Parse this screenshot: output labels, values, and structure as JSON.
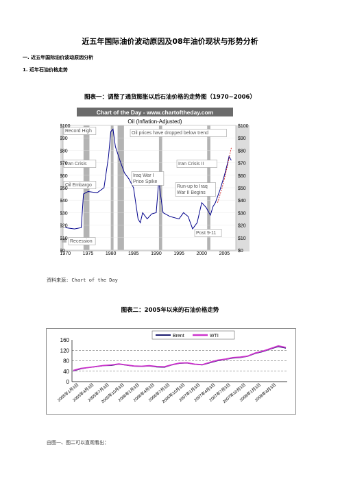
{
  "document": {
    "title": "近五年国际油价波动原因及08年油价现状与形势分析",
    "section_heading": "一.  近五年国际油价波动原因分析",
    "subsection_heading": "1.   近年石油价格走势",
    "figure1_caption": "图表一：调整了通货膨胀以后石油价格的走势图（1970~2006）",
    "source_note": "资料来源: Chart of the Day",
    "figure2_caption": "图表二：2005年以来的石油价格走势",
    "body_text": "由图一、图二可以直观看出："
  },
  "chart_data": [
    {
      "type": "line",
      "banner": "Chart of the Day - www.chartoftheday.com",
      "title": "Oil (Inflation-Adjusted)",
      "x_ticks": [
        "1970",
        "1975",
        "1980",
        "1985",
        "1990",
        "1995",
        "2000",
        "2005"
      ],
      "y_ticks_left": [
        "$100",
        "$90",
        "$80",
        "$70",
        "$60",
        "$50",
        "$40",
        "$30",
        "$20",
        "$10",
        "$0"
      ],
      "y_ticks_right": [
        "$100",
        "$90",
        "$80",
        "$70",
        "$60",
        "$50",
        "$40",
        "$30",
        "$20",
        "$10",
        "$0"
      ],
      "xlim": [
        1969.5,
        2007.5
      ],
      "ylim": [
        0,
        100
      ],
      "recessions": [
        [
          1974,
          1975.3
        ],
        [
          1980,
          1980.6
        ],
        [
          1981.5,
          1982.9
        ],
        [
          1990.6,
          1991.3
        ],
        [
          2001.2,
          2001.9
        ]
      ],
      "annotations": [
        {
          "text": "Record High"
        },
        {
          "text": "Iran Crisis"
        },
        {
          "text": "Oil Embargo"
        },
        {
          "text": "Recession"
        },
        {
          "text": "Oil prices have dropped below trend"
        },
        {
          "text": "Iraq War I Price Spike"
        },
        {
          "text": "Iran Crisis II"
        },
        {
          "text": "Run-up to Iraq War II Begins"
        },
        {
          "text": "Post 9-11"
        }
      ],
      "series": [
        {
          "color": "#00008b",
          "x": [
            1970,
            1972,
            1973.5,
            1974,
            1975,
            1977,
            1978.5,
            1979.5,
            1980,
            1980.5,
            1981,
            1982,
            1983,
            1984,
            1985,
            1986,
            1986.5,
            1987,
            1988,
            1989,
            1990,
            1990.6,
            1990.8,
            1991.5,
            1992,
            1993,
            1994,
            1995,
            1996,
            1997,
            1998,
            1999,
            2000,
            2001,
            2001.9,
            2002.5,
            2003,
            2004,
            2005,
            2005.7,
            2006,
            2006.5
          ],
          "y": [
            18,
            17,
            18,
            45,
            47,
            46,
            50,
            75,
            95,
            97,
            83,
            72,
            62,
            57,
            50,
            25,
            22,
            30,
            25,
            29,
            30,
            58,
            48,
            30,
            29,
            27,
            26,
            25,
            30,
            27,
            17,
            22,
            38,
            34,
            28,
            35,
            38,
            48,
            60,
            70,
            75,
            72
          ]
        },
        {
          "color": "#cc0000",
          "style": "dashed",
          "x": [
            2003.5,
            2004.5,
            2005.5,
            2006.5
          ],
          "y": [
            38,
            50,
            65,
            82
          ]
        }
      ]
    },
    {
      "type": "line",
      "legend": [
        "Brent",
        "WTI"
      ],
      "y_ticks": [
        "160",
        "120",
        "80",
        "40",
        "0"
      ],
      "ylim": [
        0,
        160
      ],
      "reference_lines": [
        40,
        80,
        120
      ],
      "x_ticks": [
        "2005年1月3日",
        "2005年4月3日",
        "2005年7月3日",
        "2005年10月3日",
        "2006年1月3日",
        "2006年4月3日",
        "2006年7月3日",
        "2006年10月3日",
        "2007年1月3日",
        "2007年4月3日",
        "2007年7月3日",
        "2007年10月3日",
        "2008年1月3日",
        "2008年4月3日"
      ],
      "series": [
        {
          "name": "Brent",
          "color": "#1a1a6e",
          "values": [
            41,
            49,
            54,
            57,
            61,
            62,
            67,
            63,
            59,
            58,
            60,
            56,
            55,
            64,
            70,
            71,
            66,
            64,
            72,
            80,
            85,
            90,
            92,
            97,
            108,
            115,
            125,
            134,
            128
          ]
        },
        {
          "name": "WTI",
          "color": "#cc33cc",
          "values": [
            43,
            51,
            54,
            58,
            62,
            64,
            68,
            64,
            60,
            59,
            61,
            58,
            57,
            65,
            71,
            72,
            67,
            65,
            74,
            82,
            86,
            92,
            94,
            98,
            110,
            117,
            127,
            137,
            131
          ]
        }
      ]
    }
  ]
}
